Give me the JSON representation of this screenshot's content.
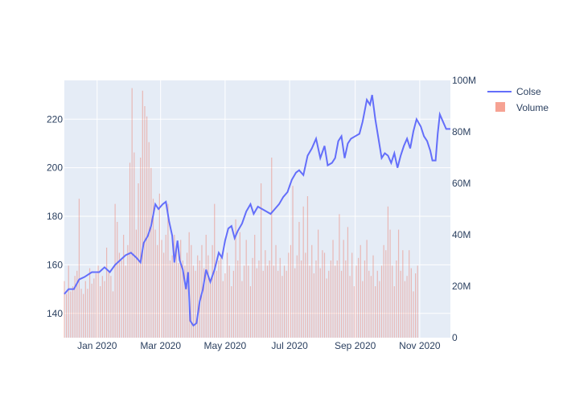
{
  "colors": {
    "plot_bg": "#E5ECF6",
    "grid": "#ffffff",
    "line": "#636EFA",
    "bar": "#EF553B",
    "text": "#2a3f5f"
  },
  "chart_data": {
    "type": "line+bar",
    "title": "",
    "x": {
      "type": "date",
      "range": [
        "2019-12-01",
        "2020-11-30"
      ],
      "tick_values": [
        "2020-01-01",
        "2020-03-01",
        "2020-05-01",
        "2020-07-01",
        "2020-09-01",
        "2020-11-01"
      ],
      "tick_labels": [
        "Jan 2020",
        "Mar 2020",
        "May 2020",
        "Jul 2020",
        "Sep 2020",
        "Nov 2020"
      ]
    },
    "y_left": {
      "range": [
        130,
        236
      ],
      "tick_values": [
        140,
        160,
        180,
        200,
        220
      ],
      "tick_labels": [
        "140",
        "160",
        "180",
        "200",
        "220"
      ]
    },
    "y_right": {
      "range": [
        0,
        100000000
      ],
      "tick_values": [
        0,
        20000000,
        40000000,
        60000000,
        80000000,
        100000000
      ],
      "tick_labels": [
        "0",
        "20M",
        "40M",
        "60M",
        "80M",
        "100M"
      ]
    },
    "legend": {
      "placement": "top-right"
    },
    "series": [
      {
        "name": "Colse",
        "type": "line",
        "axis": "left",
        "points": [
          [
            "2019-12-01",
            148
          ],
          [
            "2019-12-05",
            150
          ],
          [
            "2019-12-10",
            150
          ],
          [
            "2019-12-15",
            154
          ],
          [
            "2019-12-20",
            155
          ],
          [
            "2019-12-27",
            157
          ],
          [
            "2020-01-03",
            157
          ],
          [
            "2020-01-08",
            159
          ],
          [
            "2020-01-13",
            157
          ],
          [
            "2020-01-18",
            160
          ],
          [
            "2020-01-23",
            162
          ],
          [
            "2020-01-28",
            164
          ],
          [
            "2020-02-02",
            165
          ],
          [
            "2020-02-07",
            163
          ],
          [
            "2020-02-11",
            161
          ],
          [
            "2020-02-14",
            169
          ],
          [
            "2020-02-18",
            172
          ],
          [
            "2020-02-21",
            176
          ],
          [
            "2020-02-25",
            185
          ],
          [
            "2020-02-28",
            183
          ],
          [
            "2020-03-03",
            185
          ],
          [
            "2020-03-06",
            186
          ],
          [
            "2020-03-09",
            178
          ],
          [
            "2020-03-12",
            172
          ],
          [
            "2020-03-14",
            161
          ],
          [
            "2020-03-17",
            170
          ],
          [
            "2020-03-19",
            162
          ],
          [
            "2020-03-22",
            158
          ],
          [
            "2020-03-25",
            150
          ],
          [
            "2020-03-27",
            157
          ],
          [
            "2020-03-29",
            137
          ],
          [
            "2020-04-01",
            135
          ],
          [
            "2020-04-04",
            136
          ],
          [
            "2020-04-07",
            145
          ],
          [
            "2020-04-10",
            150
          ],
          [
            "2020-04-13",
            158
          ],
          [
            "2020-04-17",
            153
          ],
          [
            "2020-04-21",
            158
          ],
          [
            "2020-04-25",
            165
          ],
          [
            "2020-04-28",
            163
          ],
          [
            "2020-05-01",
            170
          ],
          [
            "2020-05-04",
            175
          ],
          [
            "2020-05-07",
            176
          ],
          [
            "2020-05-10",
            171
          ],
          [
            "2020-05-13",
            174
          ],
          [
            "2020-05-17",
            177
          ],
          [
            "2020-05-21",
            182
          ],
          [
            "2020-05-25",
            185
          ],
          [
            "2020-05-28",
            181
          ],
          [
            "2020-06-01",
            184
          ],
          [
            "2020-06-05",
            183
          ],
          [
            "2020-06-09",
            182
          ],
          [
            "2020-06-13",
            181
          ],
          [
            "2020-06-17",
            183
          ],
          [
            "2020-06-21",
            185
          ],
          [
            "2020-06-25",
            188
          ],
          [
            "2020-06-29",
            190
          ],
          [
            "2020-07-03",
            195
          ],
          [
            "2020-07-07",
            198
          ],
          [
            "2020-07-10",
            199
          ],
          [
            "2020-07-14",
            197
          ],
          [
            "2020-07-18",
            205
          ],
          [
            "2020-07-22",
            208
          ],
          [
            "2020-07-26",
            212
          ],
          [
            "2020-07-30",
            204
          ],
          [
            "2020-08-03",
            209
          ],
          [
            "2020-08-06",
            201
          ],
          [
            "2020-08-10",
            202
          ],
          [
            "2020-08-13",
            204
          ],
          [
            "2020-08-16",
            211
          ],
          [
            "2020-08-19",
            213
          ],
          [
            "2020-08-22",
            204
          ],
          [
            "2020-08-25",
            210
          ],
          [
            "2020-08-28",
            212
          ],
          [
            "2020-09-01",
            213
          ],
          [
            "2020-09-05",
            214
          ],
          [
            "2020-09-08",
            219
          ],
          [
            "2020-09-12",
            228
          ],
          [
            "2020-09-15",
            226
          ],
          [
            "2020-09-17",
            230
          ],
          [
            "2020-09-20",
            220
          ],
          [
            "2020-09-23",
            212
          ],
          [
            "2020-09-26",
            204
          ],
          [
            "2020-09-29",
            206
          ],
          [
            "2020-10-02",
            205
          ],
          [
            "2020-10-05",
            202
          ],
          [
            "2020-10-08",
            206
          ],
          [
            "2020-10-11",
            200
          ],
          [
            "2020-10-14",
            205
          ],
          [
            "2020-10-17",
            209
          ],
          [
            "2020-10-20",
            212
          ],
          [
            "2020-10-23",
            208
          ],
          [
            "2020-10-26",
            215
          ],
          [
            "2020-10-29",
            220
          ],
          [
            "2020-11-02",
            217
          ],
          [
            "2020-11-05",
            213
          ],
          [
            "2020-11-08",
            211
          ],
          [
            "2020-11-11",
            207
          ],
          [
            "2020-11-13",
            203
          ],
          [
            "2020-11-16",
            203
          ],
          [
            "2020-11-18",
            214
          ],
          [
            "2020-11-20",
            222
          ],
          [
            "2020-11-23",
            219
          ],
          [
            "2020-11-26",
            216
          ],
          [
            "2020-11-30",
            216
          ]
        ]
      },
      {
        "name": "Volume",
        "type": "bar",
        "axis": "right",
        "start_date": "2019-12-01",
        "days_per_bar": 2,
        "values": [
          22000000,
          17000000,
          28000000,
          18000000,
          20000000,
          24000000,
          26000000,
          54000000,
          19000000,
          17000000,
          22000000,
          19000000,
          27000000,
          21000000,
          23000000,
          25000000,
          28000000,
          20000000,
          24000000,
          22000000,
          35000000,
          26000000,
          24000000,
          18000000,
          52000000,
          45000000,
          33000000,
          30000000,
          40000000,
          28000000,
          36000000,
          68000000,
          97000000,
          72000000,
          42000000,
          60000000,
          70000000,
          96000000,
          90000000,
          86000000,
          76000000,
          66000000,
          54000000,
          42000000,
          36000000,
          56000000,
          38000000,
          33000000,
          40000000,
          52000000,
          30000000,
          32000000,
          40000000,
          35000000,
          29000000,
          38000000,
          30000000,
          28000000,
          33000000,
          41000000,
          36000000,
          28000000,
          26000000,
          32000000,
          30000000,
          36000000,
          27000000,
          40000000,
          32000000,
          22000000,
          36000000,
          52000000,
          26000000,
          30000000,
          31000000,
          22000000,
          25000000,
          33000000,
          28000000,
          20000000,
          26000000,
          46000000,
          30000000,
          41000000,
          22000000,
          28000000,
          38000000,
          28000000,
          20000000,
          31000000,
          40000000,
          27000000,
          30000000,
          60000000,
          26000000,
          34000000,
          28000000,
          30000000,
          70000000,
          28000000,
          36000000,
          26000000,
          31000000,
          24000000,
          28000000,
          26000000,
          33000000,
          36000000,
          59000000,
          27000000,
          32000000,
          45000000,
          30000000,
          51000000,
          33000000,
          55000000,
          28000000,
          36000000,
          25000000,
          30000000,
          42000000,
          27000000,
          34000000,
          33000000,
          23000000,
          26000000,
          30000000,
          38000000,
          28000000,
          30000000,
          48000000,
          26000000,
          38000000,
          30000000,
          43000000,
          24000000,
          33000000,
          20000000,
          28000000,
          31000000,
          36000000,
          22000000,
          30000000,
          38000000,
          26000000,
          24000000,
          32000000,
          20000000,
          26000000,
          22000000,
          28000000,
          36000000,
          34000000,
          51000000,
          42000000,
          28000000,
          20000000,
          30000000,
          42000000,
          26000000,
          34000000,
          22000000,
          24000000,
          34000000,
          27000000,
          18000000,
          25000000,
          28000000
        ]
      }
    ]
  }
}
